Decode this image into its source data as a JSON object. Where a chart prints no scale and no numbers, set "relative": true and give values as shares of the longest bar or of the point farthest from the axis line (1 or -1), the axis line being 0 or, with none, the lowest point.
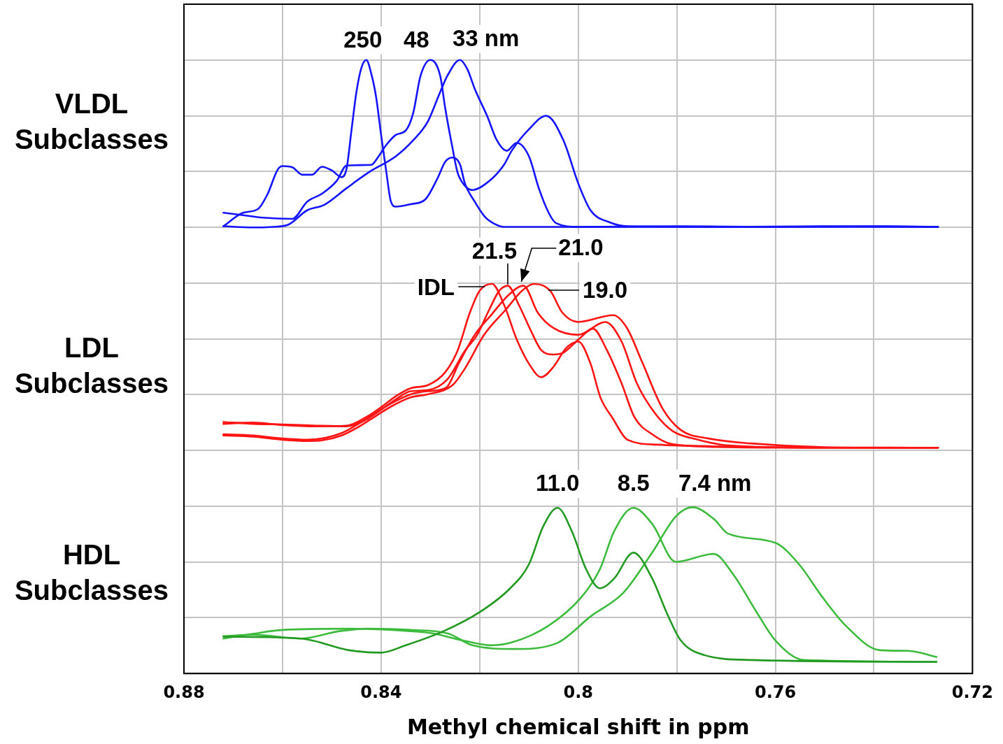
{
  "chart_data": {
    "type": "line",
    "xlabel": "Methyl chemical shift in ppm",
    "relative": true,
    "grid": true,
    "xlim": [
      0.88,
      0.72
    ],
    "xticks": [
      0.88,
      {
        "value": 0.86,
        "label": null
      },
      0.84,
      {
        "value": 0.82,
        "label": null
      },
      0.8,
      {
        "value": 0.78,
        "label": null
      },
      0.76,
      {
        "value": 0.74,
        "label": null
      },
      0.72
    ],
    "annotations": [
      "VLDL Subclasses",
      "LDL Subclasses",
      "HDL Subclasses",
      {
        "text": "250",
        "x": 0.843,
        "y": 1.0
      },
      {
        "text": "48",
        "x": 0.83,
        "y": 1.0
      },
      {
        "text": "33 nm",
        "x": 0.824,
        "y": 1.0
      },
      {
        "text": "IDL",
        "x": 0.8175,
        "y": 0.635
      },
      {
        "text": "21.5",
        "x": 0.8143,
        "y": 0.632
      },
      {
        "text": "21.0",
        "x": 0.8111,
        "y": 0.632
      },
      {
        "text": "19.0",
        "x": 0.8089,
        "y": 0.635
      },
      {
        "text": "11.0",
        "x": 0.8042,
        "y": 0.27
      },
      {
        "text": "8.5",
        "x": 0.7888,
        "y": 0.27
      },
      {
        "text": "7.4 nm",
        "x": 0.7768,
        "y": 0.271
      }
    ],
    "series": [
      {
        "color": "#1414ff",
        "x": [
          0.872,
          0.868,
          0.865,
          0.863,
          0.861,
          0.86,
          0.858,
          0.856,
          0.854,
          0.852,
          0.85,
          0.848,
          0.847,
          0.846,
          0.845,
          0.844,
          0.843,
          0.842,
          0.841,
          0.84,
          0.839,
          0.838,
          0.837,
          0.834,
          0.831,
          0.8285,
          0.827,
          0.8255,
          0.824,
          0.823,
          0.821,
          0.819,
          0.817,
          0.815,
          0.8,
          0.78,
          0.76,
          0.74,
          0.727
        ],
        "values": [
          0.729,
          0.751,
          0.757,
          0.782,
          0.821,
          0.827,
          0.825,
          0.813,
          0.813,
          0.826,
          0.82,
          0.809,
          0.823,
          0.886,
          0.948,
          0.987,
          1.0,
          0.978,
          0.939,
          0.878,
          0.821,
          0.769,
          0.761,
          0.765,
          0.773,
          0.808,
          0.834,
          0.841,
          0.83,
          0.799,
          0.769,
          0.745,
          0.733,
          0.728,
          0.728,
          0.729,
          0.728,
          0.728,
          0.728
        ]
      },
      {
        "color": "#1414ff",
        "x": [
          0.872,
          0.868,
          0.864,
          0.858,
          0.855,
          0.852,
          0.849,
          0.847,
          0.842,
          0.8405,
          0.839,
          0.837,
          0.835,
          0.8335,
          0.832,
          0.83,
          0.828,
          0.827,
          0.8255,
          0.8245,
          0.823,
          0.8215,
          0.818,
          0.815,
          0.8135,
          0.81,
          0.8065,
          0.803,
          0.8,
          0.7975,
          0.7935,
          0.79,
          0.77,
          0.75,
          0.727
        ],
        "values": [
          0.751,
          0.747,
          0.743,
          0.741,
          0.769,
          0.782,
          0.803,
          0.828,
          0.829,
          0.843,
          0.861,
          0.878,
          0.885,
          0.913,
          0.974,
          1.0,
          0.974,
          0.922,
          0.856,
          0.817,
          0.795,
          0.788,
          0.803,
          0.83,
          0.852,
          0.887,
          0.909,
          0.869,
          0.799,
          0.755,
          0.735,
          0.729,
          0.728,
          0.729,
          0.728
        ]
      },
      {
        "color": "#1414ff",
        "x": [
          0.872,
          0.866,
          0.862,
          0.859,
          0.855,
          0.8515,
          0.847,
          0.8425,
          0.837,
          0.8335,
          0.8305,
          0.828,
          0.8265,
          0.824,
          0.8225,
          0.821,
          0.8185,
          0.8165,
          0.8145,
          0.8125,
          0.81,
          0.808,
          0.806,
          0.8045,
          0.8,
          0.78,
          0.76,
          0.74,
          0.727
        ],
        "values": [
          0.729,
          0.727,
          0.728,
          0.731,
          0.755,
          0.764,
          0.791,
          0.817,
          0.843,
          0.869,
          0.9,
          0.948,
          0.975,
          1.0,
          0.985,
          0.953,
          0.909,
          0.869,
          0.852,
          0.865,
          0.843,
          0.791,
          0.751,
          0.734,
          0.728,
          0.728,
          0.728,
          0.729,
          0.728
        ]
      },
      {
        "color": "#ff1414",
        "x": [
          0.872,
          0.866,
          0.86,
          0.853,
          0.847,
          0.843,
          0.84,
          0.837,
          0.834,
          0.8305,
          0.827,
          0.8245,
          0.822,
          0.82,
          0.8175,
          0.815,
          0.8125,
          0.81,
          0.8075,
          0.805,
          0.8025,
          0.8,
          0.7975,
          0.7955,
          0.793,
          0.79,
          0.784,
          0.77,
          0.75,
          0.727
        ],
        "values": [
          0.407,
          0.409,
          0.405,
          0.403,
          0.404,
          0.418,
          0.434,
          0.452,
          0.465,
          0.47,
          0.491,
          0.526,
          0.588,
          0.624,
          0.635,
          0.6,
          0.545,
          0.505,
          0.483,
          0.5,
          0.53,
          0.541,
          0.505,
          0.45,
          0.416,
          0.381,
          0.373,
          0.37,
          0.368,
          0.368
        ]
      },
      {
        "color": "#ff1414",
        "x": [
          0.872,
          0.866,
          0.86,
          0.853,
          0.847,
          0.843,
          0.84,
          0.837,
          0.834,
          0.8305,
          0.8265,
          0.823,
          0.8205,
          0.818,
          0.816,
          0.8143,
          0.812,
          0.8095,
          0.8075,
          0.805,
          0.803,
          0.8,
          0.797,
          0.7943,
          0.7912,
          0.7886,
          0.785,
          0.781,
          0.77,
          0.75,
          0.727
        ],
        "values": [
          0.41,
          0.407,
          0.406,
          0.404,
          0.403,
          0.414,
          0.43,
          0.447,
          0.46,
          0.462,
          0.48,
          0.526,
          0.552,
          0.594,
          0.624,
          0.632,
          0.6,
          0.557,
          0.527,
          0.52,
          0.523,
          0.544,
          0.562,
          0.529,
          0.473,
          0.418,
          0.39,
          0.374,
          0.369,
          0.368,
          0.368
        ]
      },
      {
        "color": "#ff1414",
        "x": [
          0.872,
          0.866,
          0.86,
          0.855,
          0.852,
          0.848,
          0.845,
          0.842,
          0.838,
          0.834,
          0.8306,
          0.8268,
          0.8242,
          0.821,
          0.8178,
          0.814,
          0.8111,
          0.8082,
          0.805,
          0.8,
          0.7945,
          0.7912,
          0.7881,
          0.7844,
          0.7808,
          0.7756,
          0.77,
          0.75,
          0.727
        ],
        "values": [
          0.39,
          0.388,
          0.383,
          0.381,
          0.383,
          0.392,
          0.405,
          0.42,
          0.44,
          0.455,
          0.46,
          0.466,
          0.506,
          0.552,
          0.583,
          0.618,
          0.632,
          0.588,
          0.563,
          0.552,
          0.573,
          0.541,
          0.473,
          0.424,
          0.395,
          0.381,
          0.372,
          0.368,
          0.368
        ]
      },
      {
        "color": "#ff1414",
        "x": [
          0.872,
          0.866,
          0.86,
          0.855,
          0.852,
          0.848,
          0.845,
          0.842,
          0.838,
          0.834,
          0.8306,
          0.8255,
          0.823,
          0.8191,
          0.8146,
          0.8114,
          0.8089,
          0.8057,
          0.8032,
          0.8,
          0.7929,
          0.7901,
          0.787,
          0.7829,
          0.7792,
          0.7735,
          0.765,
          0.75,
          0.727
        ],
        "values": [
          0.388,
          0.386,
          0.381,
          0.379,
          0.38,
          0.388,
          0.4,
          0.415,
          0.435,
          0.45,
          0.455,
          0.47,
          0.497,
          0.552,
          0.594,
          0.624,
          0.635,
          0.624,
          0.588,
          0.573,
          0.584,
          0.563,
          0.507,
          0.432,
          0.397,
          0.383,
          0.375,
          0.369,
          0.368
        ]
      },
      {
        "color": "#229a22",
        "x": [
          0.872,
          0.8562,
          0.8465,
          0.84,
          0.835,
          0.8273,
          0.82,
          0.8138,
          0.81,
          0.8071,
          0.8042,
          0.8013,
          0.7984,
          0.7956,
          0.7927,
          0.7888,
          0.785,
          0.7821,
          0.7792,
          0.7744,
          0.7648,
          0.7273
        ],
        "values": [
          0.06,
          0.057,
          0.038,
          0.034,
          0.046,
          0.069,
          0.1,
          0.139,
          0.178,
          0.24,
          0.27,
          0.232,
          0.17,
          0.139,
          0.155,
          0.197,
          0.155,
          0.1,
          0.054,
          0.03,
          0.022,
          0.019
        ]
      },
      {
        "color": "#3cbb3c",
        "x": [
          0.872,
          0.8658,
          0.86,
          0.8465,
          0.834,
          0.8292,
          0.8235,
          0.8177,
          0.8138,
          0.8062,
          0.7994,
          0.7956,
          0.7927,
          0.7888,
          0.785,
          0.7802,
          0.7725,
          0.7686,
          0.7638,
          0.76,
          0.7542,
          0.7273
        ],
        "values": [
          0.057,
          0.065,
          0.071,
          0.073,
          0.069,
          0.065,
          0.054,
          0.046,
          0.05,
          0.077,
          0.124,
          0.17,
          0.232,
          0.27,
          0.244,
          0.182,
          0.195,
          0.162,
          0.1,
          0.054,
          0.022,
          0.019
        ]
      },
      {
        "color": "#3cbb3c",
        "x": [
          0.872,
          0.8658,
          0.8562,
          0.8485,
          0.8427,
          0.834,
          0.8263,
          0.8215,
          0.8129,
          0.8042,
          0.7975,
          0.7908,
          0.785,
          0.7802,
          0.7768,
          0.7725,
          0.7696,
          0.76,
          0.7552,
          0.7504,
          0.7456,
          0.7388,
          0.733,
          0.7273
        ],
        "values": [
          0.061,
          0.063,
          0.057,
          0.069,
          0.073,
          0.071,
          0.065,
          0.046,
          0.04,
          0.05,
          0.093,
          0.132,
          0.197,
          0.256,
          0.271,
          0.252,
          0.228,
          0.213,
          0.178,
          0.124,
          0.077,
          0.038,
          0.037,
          0.027
        ]
      }
    ]
  }
}
